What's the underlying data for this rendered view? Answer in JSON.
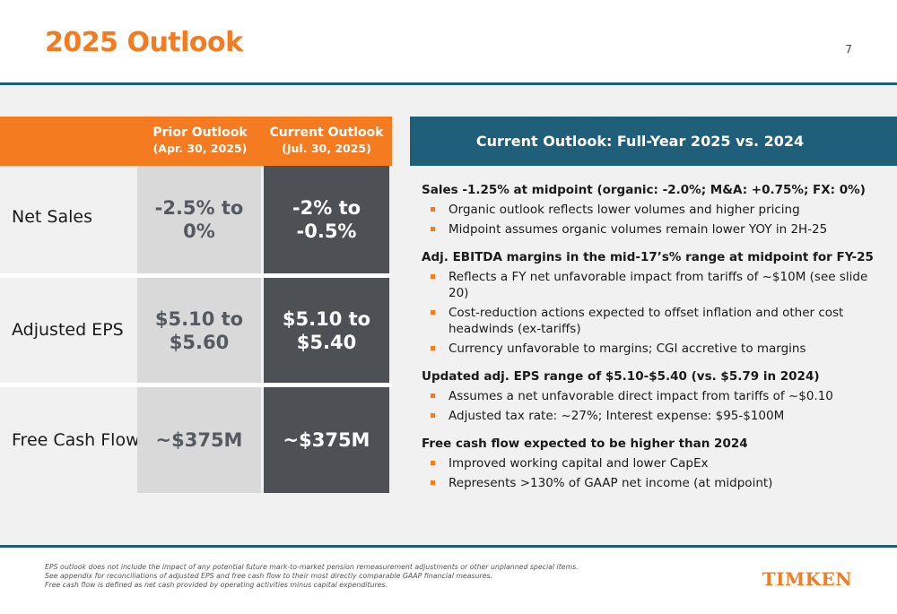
{
  "header": {
    "title": "2025 Outlook",
    "page_number": "7"
  },
  "table": {
    "columns": [
      {
        "title": "Prior Outlook",
        "subtitle": "(Apr. 30, 2025)"
      },
      {
        "title": "Current Outlook",
        "subtitle": "(Jul. 30, 2025)"
      }
    ],
    "rows": [
      {
        "label": "Net Sales",
        "prior": [
          "-2.5% to",
          "0%"
        ],
        "current": [
          "-2% to",
          "-0.5%"
        ]
      },
      {
        "label": "Adjusted EPS",
        "prior": [
          "$5.10 to",
          "$5.60"
        ],
        "current": [
          "$5.10 to",
          "$5.40"
        ]
      },
      {
        "label": "Free Cash Flow",
        "prior": [
          "~$375M"
        ],
        "current": [
          "~$375M"
        ]
      }
    ]
  },
  "panel": {
    "title": "Current Outlook: Full-Year 2025 vs. 2024",
    "sections": [
      {
        "heading": "Sales -1.25% at midpoint (organic: -2.0%; M&A: +0.75%; FX: 0%)",
        "bullets": [
          "Organic outlook reflects lower volumes and higher pricing",
          "Midpoint assumes organic volumes remain lower YOY in 2H-25"
        ]
      },
      {
        "heading": "Adj. EBITDA margins in the mid-17’s% range at midpoint for FY-25",
        "bullets": [
          "Reflects a FY net unfavorable impact from tariffs of ~$10M (see slide 20)",
          "Cost-reduction actions expected to offset inflation and other cost headwinds (ex-tariffs)",
          "Currency unfavorable to margins; CGI accretive to margins"
        ]
      },
      {
        "heading": "Updated adj. EPS range of $5.10-$5.40 (vs. $5.79 in 2024)",
        "bullets": [
          "Assumes a net unfavorable direct impact from tariffs of ~$0.10",
          "Adjusted tax rate: ~27%; Interest expense: $95-$100M"
        ]
      },
      {
        "heading": "Free cash flow expected to be higher than 2024",
        "bullets": [
          "Improved working capital and lower CapEx",
          "Represents >130% of GAAP net income (at midpoint)"
        ]
      }
    ]
  },
  "footer": {
    "notes": [
      "EPS outlook does not include the impact of any potential future mark-to-market pension remeasurement adjustments or other unplanned special items.",
      "See appendix for reconciliations of adjusted EPS and free cash flow to their most directly comparable GAAP financial measures.",
      "Free cash flow is defined as net cash provided by operating activities minus capital expenditures."
    ],
    "logo_text": "TIMKEN"
  }
}
